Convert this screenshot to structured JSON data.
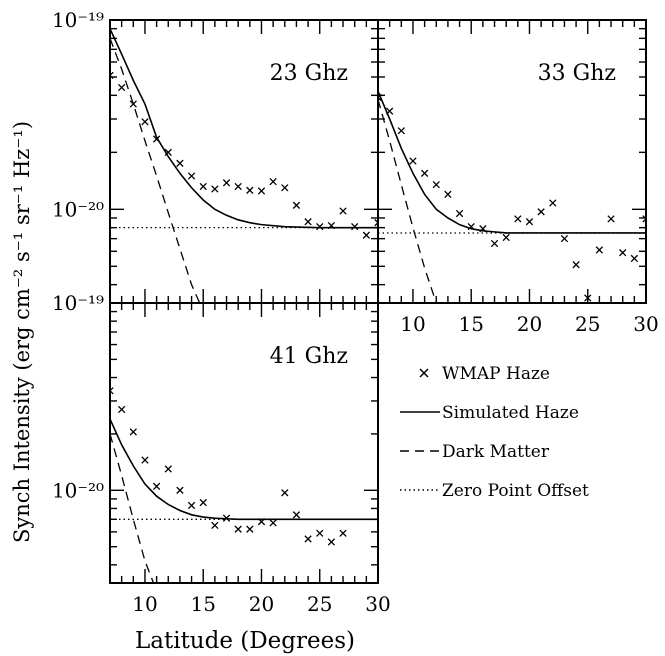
{
  "figure": {
    "ylabel": "Synch Intensity (erg cm⁻² s⁻¹ sr⁻¹ Hz⁻¹)",
    "xlabel": "Latitude (Degrees)"
  },
  "legend": {
    "placement": "bottom-right",
    "entries": [
      {
        "key": "wmap",
        "label": "WMAP Haze",
        "style": "x-marker"
      },
      {
        "key": "sim",
        "label": "Simulated Haze",
        "style": "solid"
      },
      {
        "key": "dm",
        "label": "Dark Matter",
        "style": "dashed"
      },
      {
        "key": "zero",
        "label": "Zero Point Offset",
        "style": "dotted"
      }
    ]
  },
  "chart_data": [
    {
      "type": "line",
      "title": "23 Ghz",
      "xlim": [
        7,
        30
      ],
      "ylim": [
        3.2e-21,
        1e-19
      ],
      "yscale": "log",
      "x_tick_labels": [],
      "y_tick_labels": [
        "10⁻¹⁹",
        "10⁻²⁰"
      ],
      "series": [
        {
          "name": "WMAP Haze",
          "style": "x-marker",
          "x": [
            7,
            8,
            9,
            10,
            11,
            12,
            13,
            14,
            15,
            16,
            17,
            18,
            19,
            20,
            21,
            22,
            23,
            24,
            25,
            26,
            27,
            28,
            29,
            30
          ],
          "y": [
            5.1e-20,
            4.4e-20,
            3.6e-20,
            2.9e-20,
            2.35e-20,
            2e-20,
            1.75e-20,
            1.5e-20,
            1.32e-20,
            1.28e-20,
            1.38e-20,
            1.32e-20,
            1.26e-20,
            1.25e-20,
            1.4e-20,
            1.3e-20,
            1.05e-20,
            8.6e-21,
            8.1e-21,
            8.2e-21,
            9.8e-21,
            8.1e-21,
            7.3e-21,
            8.5e-21
          ]
        },
        {
          "name": "Simulated Haze",
          "style": "solid",
          "x": [
            7,
            8,
            9,
            10,
            11,
            12,
            13,
            14,
            15,
            16,
            17,
            18,
            19,
            20,
            22,
            25,
            28,
            30
          ],
          "y": [
            9e-20,
            6.6e-20,
            4.8e-20,
            3.6e-20,
            2.4e-20,
            1.9e-20,
            1.55e-20,
            1.3e-20,
            1.12e-20,
            1e-20,
            9.3e-21,
            8.8e-21,
            8.5e-21,
            8.3e-21,
            8.1e-21,
            8e-21,
            8e-21,
            8e-21
          ]
        },
        {
          "name": "Dark Matter",
          "style": "dashed",
          "x": [
            7,
            8,
            9,
            10,
            11,
            12,
            13,
            14,
            15
          ],
          "y": [
            8e-20,
            5.5e-20,
            3.6e-20,
            2.3e-20,
            1.5e-20,
            9.6e-21,
            6.2e-21,
            4e-21,
            2.9e-21
          ]
        },
        {
          "name": "Zero Point Offset",
          "style": "dotted",
          "x": [
            7,
            30
          ],
          "y": [
            8e-21,
            8e-21
          ]
        }
      ]
    },
    {
      "type": "line",
      "title": "33 Ghz",
      "xlim": [
        7,
        30
      ],
      "ylim": [
        3.2e-21,
        1e-19
      ],
      "yscale": "log",
      "x_tick_labels": [
        "10",
        "15",
        "20",
        "25",
        "30"
      ],
      "y_tick_labels": [],
      "series": [
        {
          "name": "WMAP Haze",
          "style": "x-marker",
          "x": [
            7,
            8,
            9,
            10,
            11,
            12,
            13,
            14,
            15,
            16,
            17,
            18,
            19,
            20,
            21,
            22,
            23,
            24,
            25,
            26,
            27,
            28,
            29,
            30
          ],
          "y": [
            3.9e-20,
            3.3e-20,
            2.6e-20,
            1.8e-20,
            1.55e-20,
            1.35e-20,
            1.2e-20,
            9.5e-21,
            8.1e-21,
            7.9e-21,
            6.6e-21,
            7.1e-21,
            8.9e-21,
            8.6e-21,
            9.7e-21,
            1.08e-20,
            7e-21,
            5.1e-21,
            3.4e-21,
            6.1e-21,
            8.9e-21,
            5.9e-21,
            5.5e-21,
            8.9e-21
          ]
        },
        {
          "name": "Simulated Haze",
          "style": "solid",
          "x": [
            7,
            8,
            9,
            10,
            11,
            12,
            13,
            14,
            15,
            16,
            17,
            18,
            20,
            25,
            30
          ],
          "y": [
            4.2e-20,
            3e-20,
            2.1e-20,
            1.55e-20,
            1.2e-20,
            1e-20,
            9e-21,
            8.3e-21,
            7.9e-21,
            7.7e-21,
            7.6e-21,
            7.5e-21,
            7.5e-21,
            7.5e-21,
            7.5e-21
          ]
        },
        {
          "name": "Dark Matter",
          "style": "dashed",
          "x": [
            7,
            8,
            9,
            10,
            11,
            12
          ],
          "y": [
            3.8e-20,
            2.3e-20,
            1.35e-20,
            8e-21,
            4.9e-21,
            3.2e-21
          ]
        },
        {
          "name": "Zero Point Offset",
          "style": "dotted",
          "x": [
            7,
            30
          ],
          "y": [
            7.5e-21,
            7.5e-21
          ]
        }
      ]
    },
    {
      "type": "line",
      "title": "41 Ghz",
      "xlim": [
        7,
        30
      ],
      "ylim": [
        3.2e-21,
        1e-19
      ],
      "yscale": "log",
      "x_tick_labels": [
        "10",
        "15",
        "20",
        "25",
        "30"
      ],
      "y_tick_labels": [
        "10⁻¹⁹",
        "10⁻²⁰"
      ],
      "series": [
        {
          "name": "WMAP Haze",
          "style": "x-marker",
          "x": [
            7,
            8,
            9,
            10,
            11,
            12,
            13,
            14,
            15,
            16,
            17,
            18,
            19,
            20,
            21,
            22,
            23,
            24,
            25,
            26,
            27
          ],
          "y": [
            3.4e-20,
            2.7e-20,
            2.05e-20,
            1.45e-20,
            1.05e-20,
            1.3e-20,
            1e-20,
            8.3e-21,
            8.6e-21,
            6.5e-21,
            7.1e-21,
            6.2e-21,
            6.2e-21,
            6.8e-21,
            6.7e-21,
            9.7e-21,
            7.4e-21,
            5.5e-21,
            5.9e-21,
            5.3e-21,
            5.9e-21
          ]
        },
        {
          "name": "Simulated Haze",
          "style": "solid",
          "x": [
            7,
            8,
            9,
            10,
            11,
            12,
            13,
            14,
            15,
            16,
            17,
            18,
            20,
            25,
            30
          ],
          "y": [
            2.4e-20,
            1.75e-20,
            1.35e-20,
            1.08e-20,
            9.3e-21,
            8.4e-21,
            7.8e-21,
            7.4e-21,
            7.2e-21,
            7.1e-21,
            7.05e-21,
            7e-21,
            7e-21,
            7e-21,
            7e-21
          ]
        },
        {
          "name": "Dark Matter",
          "style": "dashed",
          "x": [
            7,
            8,
            9,
            10,
            11
          ],
          "y": [
            2e-20,
            1.2e-20,
            7e-21,
            4.2e-21,
            2.9e-21
          ]
        },
        {
          "name": "Zero Point Offset",
          "style": "dotted",
          "x": [
            7,
            30
          ],
          "y": [
            7e-21,
            7e-21
          ]
        }
      ]
    }
  ]
}
